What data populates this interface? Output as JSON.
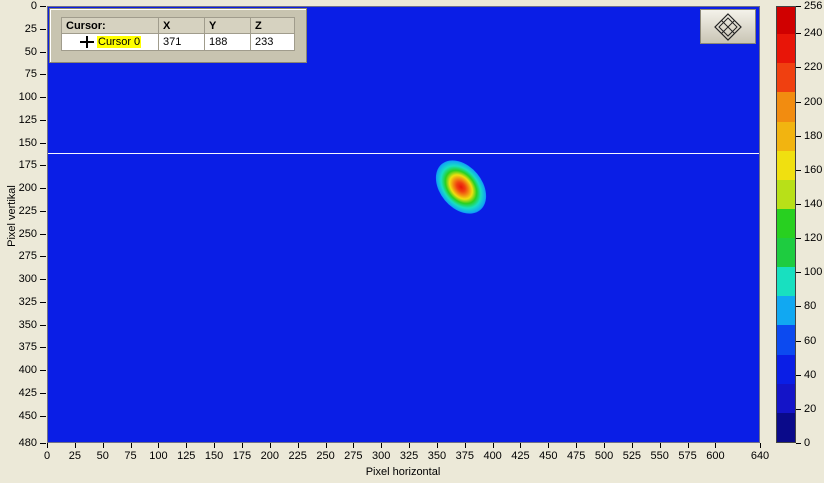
{
  "cursor_legend": {
    "headers": [
      "Cursor:",
      "X",
      "Y",
      "Z"
    ],
    "row": {
      "name": "Cursor 0",
      "x": "371",
      "y": "188",
      "z": "233"
    }
  },
  "nav_button": {
    "icon": "pan-zoom-diamond-icon"
  },
  "axes": {
    "y_title": "Pixel vertikal",
    "x_title": "Pixel horizontal",
    "y_ticks": [
      "0",
      "25",
      "50",
      "75",
      "100",
      "125",
      "150",
      "175",
      "200",
      "225",
      "250",
      "275",
      "300",
      "325",
      "350",
      "375",
      "400",
      "425",
      "450",
      "480"
    ],
    "x_ticks": [
      "0",
      "25",
      "50",
      "75",
      "100",
      "125",
      "150",
      "175",
      "200",
      "225",
      "250",
      "275",
      "300",
      "325",
      "350",
      "375",
      "400",
      "425",
      "450",
      "475",
      "500",
      "525",
      "550",
      "575",
      "600",
      "640"
    ]
  },
  "colorbar": {
    "labels": [
      "256",
      "240",
      "220",
      "200",
      "180",
      "160",
      "140",
      "120",
      "100",
      "80",
      "60",
      "40",
      "20",
      "0"
    ],
    "colors": [
      "#0a0a8a",
      "#1414c8",
      "#0a1ee6",
      "#0c4af0",
      "#11a8f2",
      "#18e0c0",
      "#1ecc40",
      "#28d020",
      "#b8e018",
      "#f0e010",
      "#f2b410",
      "#f28c10",
      "#f04010",
      "#e81508",
      "#d00000"
    ]
  },
  "plot": {
    "cursor_row": 160,
    "background_color": "#0a1ee6"
  }
}
